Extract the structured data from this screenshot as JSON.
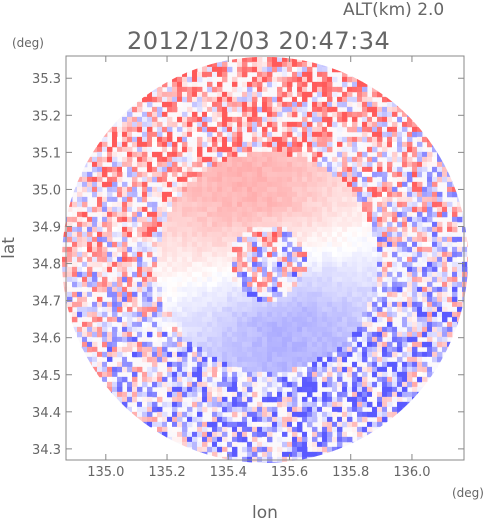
{
  "header": {
    "altitude": "ALT(km) 2.0",
    "timestamp": "2012/12/03 20:47:34"
  },
  "chart_data": {
    "type": "heatmap",
    "title": "2012/12/03 20:47:34",
    "annotation": "ALT(km) 2.0",
    "xlabel": "lon",
    "ylabel": "lat",
    "x_unit": "(deg)",
    "y_unit": "(deg)",
    "xlim": [
      134.87,
      136.17
    ],
    "ylim": [
      34.27,
      35.36
    ],
    "x_ticks": [
      135.0,
      135.2,
      135.4,
      135.6,
      135.8,
      136.0
    ],
    "y_ticks": [
      34.3,
      34.4,
      34.5,
      34.6,
      34.7,
      34.8,
      34.9,
      35.0,
      35.1,
      35.2,
      35.3
    ],
    "x_tick_labels": [
      "135.0",
      "135.2",
      "135.4",
      "135.6",
      "135.8",
      "136.0"
    ],
    "y_tick_labels": [
      "34.3",
      "34.4",
      "34.5",
      "34.6",
      "34.7",
      "34.8",
      "34.9",
      "35.0",
      "35.1",
      "35.2",
      "35.3"
    ],
    "center": [
      135.52,
      34.81
    ],
    "colormap": [
      "#5a5aff",
      "#ffffff",
      "#ff5a5a"
    ],
    "grid": false
  }
}
